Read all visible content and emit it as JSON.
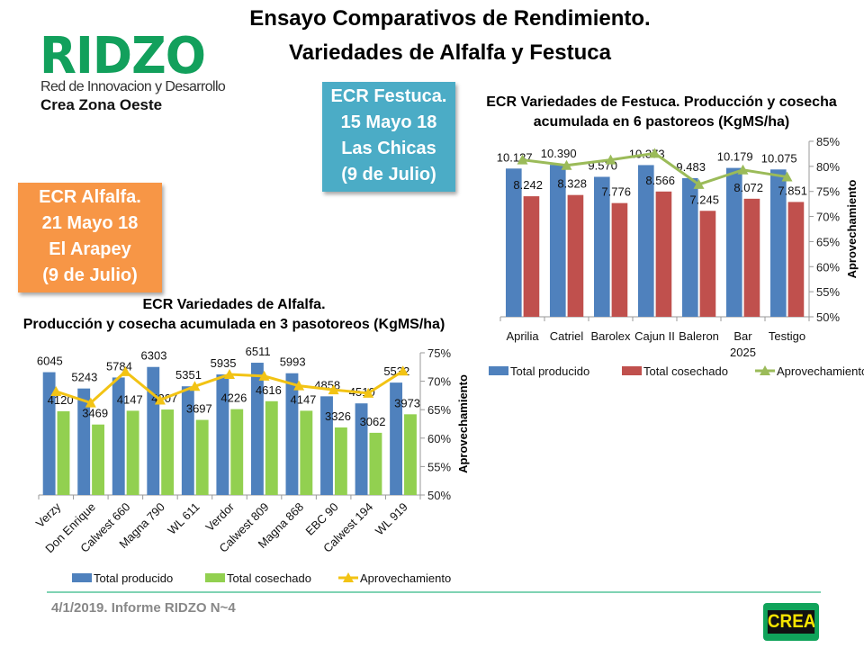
{
  "header": {
    "title_line1": "Ensayo Comparativos de Rendimiento.",
    "title_line2": "Variedades de Alfalfa y Festuca"
  },
  "logo": {
    "name": "RIDZO",
    "subtitle": "Red de Innovacion y Desarrollo",
    "subtitle2": "Crea Zona Oeste"
  },
  "boxes": {
    "festuca": {
      "lines": [
        "ECR Festuca.",
        "15 Mayo 18",
        "Las Chicas",
        "(9 de Julio)"
      ],
      "color": "#4bacc6"
    },
    "alfalfa": {
      "lines": [
        "ECR Alfalfa.",
        "21 Mayo 18",
        "El Arapey",
        "(9 de Julio)"
      ],
      "color": "#f79646"
    }
  },
  "footer": {
    "text": "4/1/2019. Informe RIDZO N~4",
    "logo": "CREA"
  },
  "chart_data": [
    {
      "type": "bar",
      "title_lines": [
        "ECR Variedades de Festuca. Producción y cosecha",
        "acumulada en 6 pastoreos (KgMS/ha)"
      ],
      "categories": [
        [
          "Aprilia"
        ],
        [
          "Catriel"
        ],
        [
          "Barolex"
        ],
        [
          "Cajun II"
        ],
        [
          "Baleron"
        ],
        [
          "Bar",
          "2025"
        ],
        [
          "Testigo"
        ]
      ],
      "series": [
        {
          "name": "Total producido",
          "kind": "bar",
          "color": "#4f81bd",
          "values": [
            10137,
            10390,
            9570,
            10373,
            9483,
            10179,
            10075
          ],
          "labels": [
            "10.137",
            "10.390",
            "9.570",
            "10.373",
            "9.483",
            "10.179",
            "10.075"
          ]
        },
        {
          "name": "Total cosechado",
          "kind": "bar",
          "color": "#c0504d",
          "values": [
            8242,
            8328,
            7776,
            8566,
            7245,
            8072,
            7851
          ],
          "labels": [
            "8.242",
            "8.328",
            "7.776",
            "8.566",
            "7.245",
            "8.072",
            "7.851"
          ]
        },
        {
          "name": "Aprovechamiento",
          "kind": "line",
          "axis": "right",
          "color": "#9bbb59",
          "values": [
            81.3,
            80.2,
            81.3,
            82.6,
            76.4,
            79.3,
            77.9
          ]
        }
      ],
      "ylim_left": [
        0,
        12000
      ],
      "ylim_right": [
        50,
        85
      ],
      "right_ticks": [
        "50%",
        "55%",
        "60%",
        "65%",
        "70%",
        "75%",
        "80%",
        "85%"
      ],
      "ylabel_right": "Aprovechamiento",
      "legend": "bottom"
    },
    {
      "type": "bar",
      "title_lines": [
        "ECR Variedades de Alfalfa.",
        "Producción y cosecha acumulada en 3 pasotoreos (KgMS/ha)"
      ],
      "categories": [
        [
          "Verzy"
        ],
        [
          "Don Enrique"
        ],
        [
          "Calwest 660"
        ],
        [
          "Magna 790"
        ],
        [
          "WL 611"
        ],
        [
          "Verdor"
        ],
        [
          "Calwest 809"
        ],
        [
          "Magna 868"
        ],
        [
          "EBC 90"
        ],
        [
          "Calwest 194"
        ],
        [
          "WL 919"
        ]
      ],
      "series": [
        {
          "name": "Total producido",
          "kind": "bar",
          "color": "#4f81bd",
          "values": [
            6045,
            5243,
            5784,
            6303,
            5351,
            5935,
            6511,
            5993,
            4858,
            4510,
            5532
          ],
          "labels": [
            "6045",
            "5243",
            "5784",
            "6303",
            "5351",
            "5935",
            "6511",
            "5993",
            "4858",
            "4510",
            "5532"
          ]
        },
        {
          "name": "Total cosechado",
          "kind": "bar",
          "color": "#92d050",
          "values": [
            4120,
            3469,
            4147,
            4207,
            3697,
            4226,
            4616,
            4147,
            3326,
            3062,
            3973
          ],
          "labels": [
            "4120",
            "3469",
            "4147",
            "4207",
            "3697",
            "4226",
            "4616",
            "4147",
            "3326",
            "3062",
            "3973"
          ]
        },
        {
          "name": "Aprovechamiento",
          "kind": "line",
          "axis": "right",
          "color": "#f2c314",
          "values": [
            68.2,
            66.2,
            71.7,
            66.7,
            69.1,
            71.2,
            70.9,
            69.2,
            68.5,
            67.9,
            71.8
          ]
        }
      ],
      "ylim_left": [
        0,
        7000
      ],
      "ylim_right": [
        50,
        75
      ],
      "right_ticks": [
        "50%",
        "55%",
        "60%",
        "65%",
        "70%",
        "75%"
      ],
      "ylabel_right": "Aprovechamiento",
      "legend": "bottom"
    }
  ]
}
